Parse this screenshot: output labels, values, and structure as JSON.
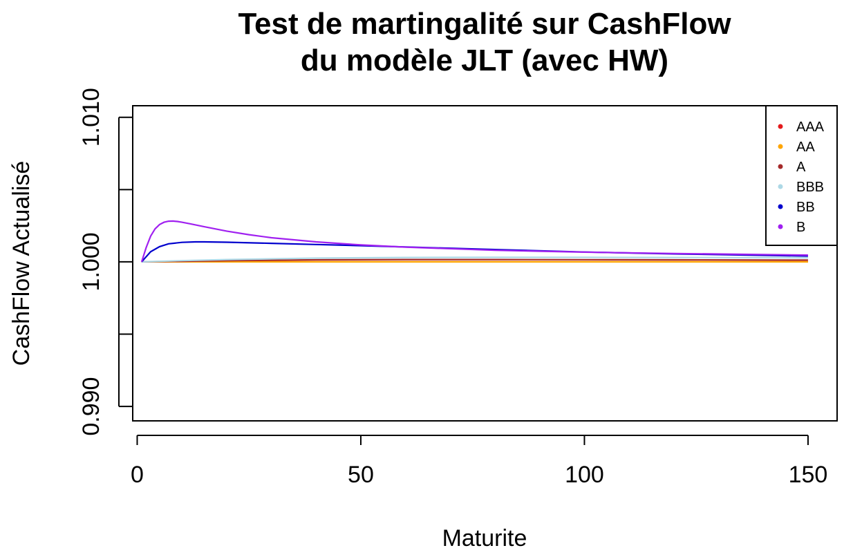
{
  "chart_data": {
    "type": "line",
    "title_line1": "Test de martingalité sur CashFlow",
    "title_line2": "du modèle JLT (avec HW)",
    "xlabel": "Maturite",
    "ylabel": "CashFlow Actualisé",
    "xlim": [
      -1,
      156.5
    ],
    "ylim": [
      0.989,
      1.0108
    ],
    "x_ticks": [
      0,
      50,
      100,
      150
    ],
    "y_ticks": [
      0.99,
      0.995,
      1.0,
      1.005,
      1.01
    ],
    "y_tick_labels": [
      "0.990",
      "",
      "1.000",
      "",
      "1.010"
    ],
    "legend_position": "top-right",
    "series": [
      {
        "name": "AAA",
        "color": "#e41a1c",
        "x": [
          1,
          5,
          10,
          20,
          40,
          60,
          80,
          100,
          120,
          150
        ],
        "y": [
          1.0,
          1.0,
          1.0,
          1.0,
          1.0,
          1.0,
          1.0,
          1.0,
          1.0,
          1.0
        ]
      },
      {
        "name": "AA",
        "color": "#ffa500",
        "x": [
          1,
          5,
          10,
          20,
          40,
          60,
          80,
          100,
          120,
          150
        ],
        "y": [
          1.0,
          1.0,
          1.0,
          1.0,
          1.0,
          1.0,
          1.0,
          1.0,
          1.0,
          1.0
        ]
      },
      {
        "name": "A",
        "color": "#a52a2a",
        "x": [
          1,
          5,
          10,
          20,
          40,
          60,
          80,
          100,
          120,
          150
        ],
        "y": [
          1.0,
          1.00002,
          1.00004,
          1.00008,
          1.00014,
          1.00016,
          1.00016,
          1.00015,
          1.00014,
          1.00012
        ]
      },
      {
        "name": "BBB",
        "color": "#add8e6",
        "x": [
          1,
          5,
          10,
          20,
          40,
          60,
          80,
          100,
          120,
          150
        ],
        "y": [
          1.0,
          1.00004,
          1.00008,
          1.00016,
          1.00026,
          1.0003,
          1.00031,
          1.00031,
          1.0003,
          1.00028
        ]
      },
      {
        "name": "BB",
        "color": "#0000cd",
        "x": [
          1,
          3,
          5,
          7,
          10,
          13,
          15,
          20,
          30,
          40,
          50,
          60,
          80,
          100,
          120,
          150
        ],
        "y": [
          1.0,
          1.0007,
          1.00105,
          1.00125,
          1.00135,
          1.00138,
          1.00138,
          1.00136,
          1.00128,
          1.0012,
          1.00112,
          1.00103,
          1.00085,
          1.00068,
          1.00055,
          1.0004
        ]
      },
      {
        "name": "B",
        "color": "#a020f0",
        "x": [
          1,
          2,
          3,
          4,
          5,
          6,
          7,
          8,
          9,
          10,
          12,
          15,
          20,
          25,
          30,
          40,
          50,
          60,
          80,
          100,
          120,
          150
        ],
        "y": [
          1.0,
          1.00098,
          1.00178,
          1.00228,
          1.00258,
          1.00274,
          1.00281,
          1.00282,
          1.00279,
          1.00274,
          1.00262,
          1.00243,
          1.00213,
          1.00188,
          1.00167,
          1.00138,
          1.00117,
          1.00102,
          1.0008,
          1.00067,
          1.00058,
          1.00047
        ]
      }
    ]
  }
}
